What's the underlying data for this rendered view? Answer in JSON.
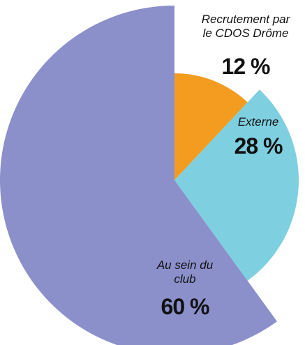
{
  "chart_data": {
    "type": "pie",
    "categories": [
      "Recrutement par le CDOS Drôme",
      "Externe",
      "Au sein du club"
    ],
    "values": [
      12,
      28,
      60
    ],
    "value_labels": [
      "12 %",
      "28 %",
      "60 %"
    ],
    "colors": [
      "#f39c1f",
      "#7ecfe0",
      "#8b8fca"
    ]
  }
}
